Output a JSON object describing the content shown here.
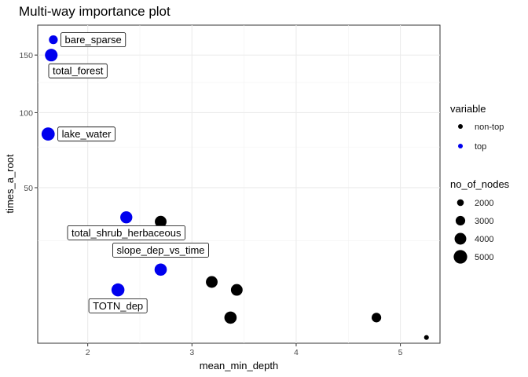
{
  "chart_data": {
    "type": "scatter",
    "title": "Multi-way importance plot",
    "xlabel": "mean_min_depth",
    "ylabel": "times_a_root",
    "xlim": [
      1.52,
      5.38
    ],
    "y_scale": "sqrt",
    "ylim": [
      1,
      180
    ],
    "x_ticks": [
      2,
      3,
      4,
      5
    ],
    "y_ticks": [
      50,
      100,
      150
    ],
    "grid": true,
    "legend_placement": "right",
    "colors": {
      "top": "#0000ee",
      "non-top": "#000000"
    },
    "legend": {
      "color_title": "variable",
      "color_entries": [
        {
          "label": "non-top",
          "key": "non-top"
        },
        {
          "label": "top",
          "key": "top"
        }
      ],
      "size_title": "no_of_nodes",
      "size_entries": [
        {
          "label": "2000",
          "value": 2000
        },
        {
          "label": "3000",
          "value": 3000
        },
        {
          "label": "4000",
          "value": 4000
        },
        {
          "label": "5000",
          "value": 5000
        }
      ]
    },
    "points": [
      {
        "label": "bare_sparse",
        "x": 1.67,
        "y": 165,
        "nodes": 2700,
        "group": "top",
        "label_side": "right"
      },
      {
        "label": "total_forest",
        "x": 1.65,
        "y": 150,
        "nodes": 4500,
        "group": "top",
        "label_side": "below"
      },
      {
        "label": "lake_water",
        "x": 1.62,
        "y": 84,
        "nodes": 4800,
        "group": "top",
        "label_side": "right"
      },
      {
        "label": "total_shrub_herbaceous",
        "x": 2.37,
        "y": 35,
        "nodes": 4200,
        "group": "top",
        "label_side": "below"
      },
      {
        "label": "",
        "x": 2.7,
        "y": 33,
        "nodes": 4000,
        "group": "non-top"
      },
      {
        "label": "slope_dep_vs_time",
        "x": 2.7,
        "y": 15,
        "nodes": 4300,
        "group": "top",
        "label_side": "above"
      },
      {
        "label": "",
        "x": 3.19,
        "y": 11.5,
        "nodes": 4000,
        "group": "non-top"
      },
      {
        "label": "",
        "x": 3.43,
        "y": 9.5,
        "nodes": 4000,
        "group": "non-top"
      },
      {
        "label": "TOTN_dep",
        "x": 2.29,
        "y": 9.5,
        "nodes": 4700,
        "group": "top",
        "label_side": "below"
      },
      {
        "label": "",
        "x": 3.37,
        "y": 4,
        "nodes": 4300,
        "group": "non-top"
      },
      {
        "label": "",
        "x": 4.77,
        "y": 4,
        "nodes": 3000,
        "group": "non-top"
      },
      {
        "label": "",
        "x": 5.25,
        "y": 1.5,
        "nodes": 1500,
        "group": "non-top"
      }
    ]
  }
}
